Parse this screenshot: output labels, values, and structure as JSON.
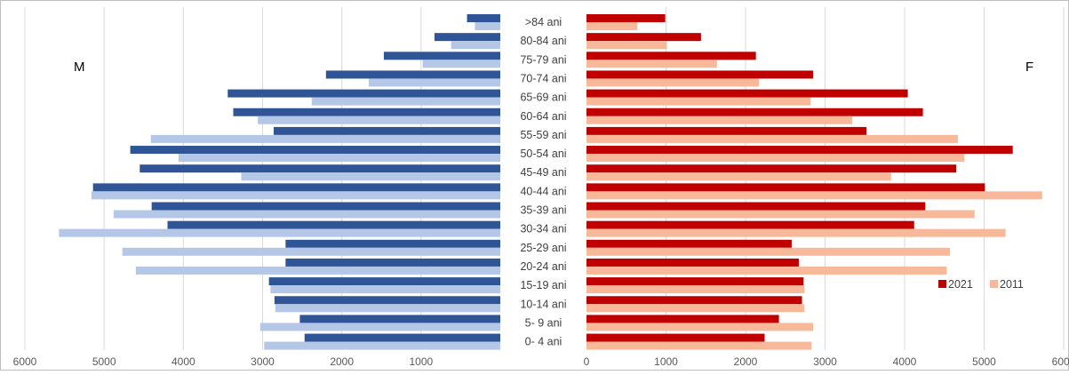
{
  "chart_data": {
    "type": "bar",
    "orientation": "horizontal",
    "subtype": "population-pyramid",
    "categories": [
      ">84 ani",
      "80-84 ani",
      "75-79 ani",
      "70-74 ani",
      "65-69 ani",
      "60-64 ani",
      "55-59 ani",
      "50-54 ani",
      "45-49 ani",
      "40-44 ani",
      "35-39 ani",
      "30-34 ani",
      "25-29 ani",
      "20-24 ani",
      "15-19 ani",
      "10-14 ani",
      "5- 9 ani",
      "0- 4 ani"
    ],
    "left_label": "M",
    "right_label": "F",
    "left_axis": {
      "ticks": [
        "6000",
        "5000",
        "4000",
        "3000",
        "2000",
        "1000"
      ],
      "lim": [
        0,
        6000
      ]
    },
    "right_axis": {
      "ticks": [
        "0",
        "1000",
        "2000",
        "3000",
        "4000",
        "5000",
        "6000"
      ],
      "lim": [
        0,
        6000
      ]
    },
    "grid": true,
    "legend_position": "right",
    "series": [
      {
        "name": "2021",
        "side": "M",
        "color": "#2f5597",
        "values": [
          420,
          830,
          1470,
          2200,
          3440,
          3370,
          2860,
          4670,
          4550,
          5140,
          4400,
          4200,
          2710,
          2710,
          2920,
          2850,
          2530,
          2470
        ]
      },
      {
        "name": "2011",
        "side": "M",
        "color": "#b4c7e7",
        "values": [
          320,
          620,
          980,
          1660,
          2380,
          3060,
          4410,
          4060,
          3270,
          5160,
          4880,
          5570,
          4770,
          4600,
          2900,
          2840,
          3030,
          2980
        ]
      },
      {
        "name": "2021",
        "side": "F",
        "color": "#c00000",
        "values": [
          990,
          1440,
          2130,
          2850,
          4040,
          4230,
          3520,
          5360,
          4650,
          5010,
          4260,
          4120,
          2580,
          2670,
          2730,
          2710,
          2420,
          2240
        ]
      },
      {
        "name": "2011",
        "side": "F",
        "color": "#f8b99a",
        "values": [
          640,
          1010,
          1640,
          2170,
          2820,
          3340,
          4670,
          4750,
          3830,
          5730,
          4880,
          5270,
          4570,
          4530,
          2740,
          2740,
          2850,
          2830
        ]
      }
    ],
    "legend": [
      {
        "label": "2021",
        "color": "#c00000"
      },
      {
        "label": "2011",
        "color": "#f8b99a"
      }
    ]
  }
}
